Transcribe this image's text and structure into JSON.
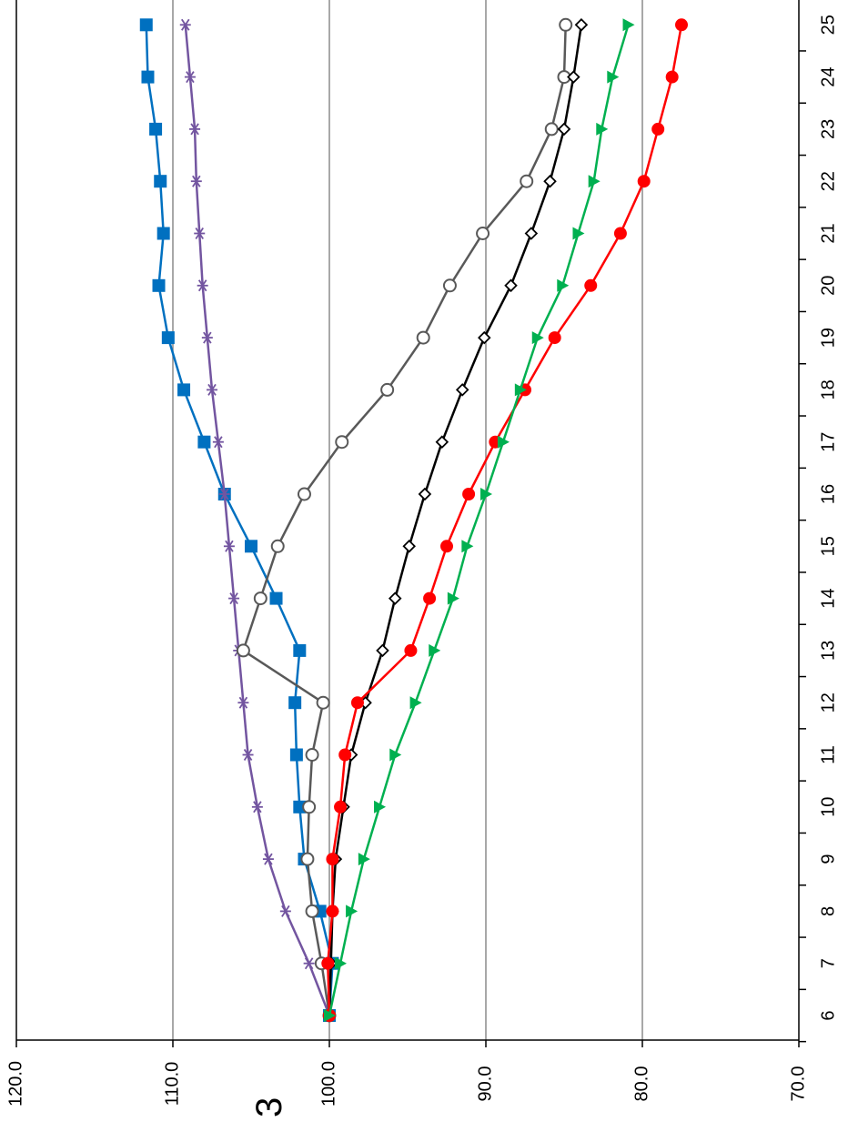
{
  "page_number": "3",
  "chart_data": {
    "type": "line",
    "orientation": "rotated-90-ccw",
    "x": [
      6,
      7,
      8,
      9,
      10,
      11,
      12,
      13,
      14,
      15,
      16,
      17,
      18,
      19,
      20,
      21,
      22,
      23,
      24,
      25
    ],
    "x_tick_labels": [
      "6",
      "7",
      "8",
      "9",
      "10",
      "11",
      "12",
      "13",
      "14",
      "15",
      "16",
      "17",
      "18",
      "19",
      "20",
      "21",
      "22",
      "23",
      "24",
      "25"
    ],
    "y_tick_labels": [
      "120.0",
      "110.0",
      "100.0",
      "90.0",
      "80.0",
      "70.0"
    ],
    "ylim": [
      70,
      120
    ],
    "y_ticks": [
      120,
      110,
      100,
      90,
      80,
      70
    ],
    "grid": "horizontal-major",
    "legend": "none",
    "series": [
      {
        "marker": "square",
        "color": "#0070C0",
        "values": [
          100.0,
          99.8,
          100.6,
          101.6,
          101.9,
          102.1,
          102.2,
          101.9,
          103.4,
          105.0,
          106.7,
          108.0,
          109.3,
          110.3,
          110.9,
          110.6,
          110.8,
          111.1,
          111.6,
          111.7
        ]
      },
      {
        "marker": "asterisk",
        "color": "#7355A0",
        "values": [
          100.0,
          101.3,
          102.8,
          103.9,
          104.6,
          105.2,
          105.5,
          105.8,
          106.1,
          106.4,
          106.7,
          107.1,
          107.5,
          107.8,
          108.1,
          108.3,
          108.5,
          108.6,
          108.9,
          109.2
        ]
      },
      {
        "marker": "circle-open",
        "color": "#595959",
        "values": [
          100.0,
          100.5,
          101.1,
          101.4,
          101.3,
          101.1,
          100.4,
          105.5,
          104.4,
          103.3,
          101.6,
          99.2,
          96.3,
          94.0,
          92.3,
          90.2,
          87.4,
          85.8,
          85.0,
          84.9
        ]
      },
      {
        "marker": "diamond-open",
        "color": "#000000",
        "values": [
          100.0,
          99.9,
          99.8,
          99.6,
          99.1,
          98.6,
          97.7,
          96.6,
          95.8,
          94.9,
          93.9,
          92.8,
          91.5,
          90.1,
          88.4,
          87.1,
          85.9,
          85.0,
          84.4,
          83.9
        ]
      },
      {
        "marker": "circle-filled",
        "color": "#FF0000",
        "values": [
          100.0,
          100.1,
          99.8,
          99.8,
          99.3,
          99.0,
          98.2,
          94.8,
          93.6,
          92.5,
          91.1,
          89.4,
          87.5,
          85.6,
          83.3,
          81.4,
          79.9,
          79.0,
          78.1,
          77.5
        ]
      },
      {
        "marker": "triangle-filled",
        "color": "#00B050",
        "values": [
          100.0,
          99.3,
          98.6,
          97.8,
          96.8,
          95.8,
          94.5,
          93.3,
          92.1,
          91.2,
          90.0,
          88.9,
          87.8,
          86.7,
          85.1,
          84.1,
          83.1,
          82.6,
          81.9,
          80.9
        ]
      }
    ]
  }
}
